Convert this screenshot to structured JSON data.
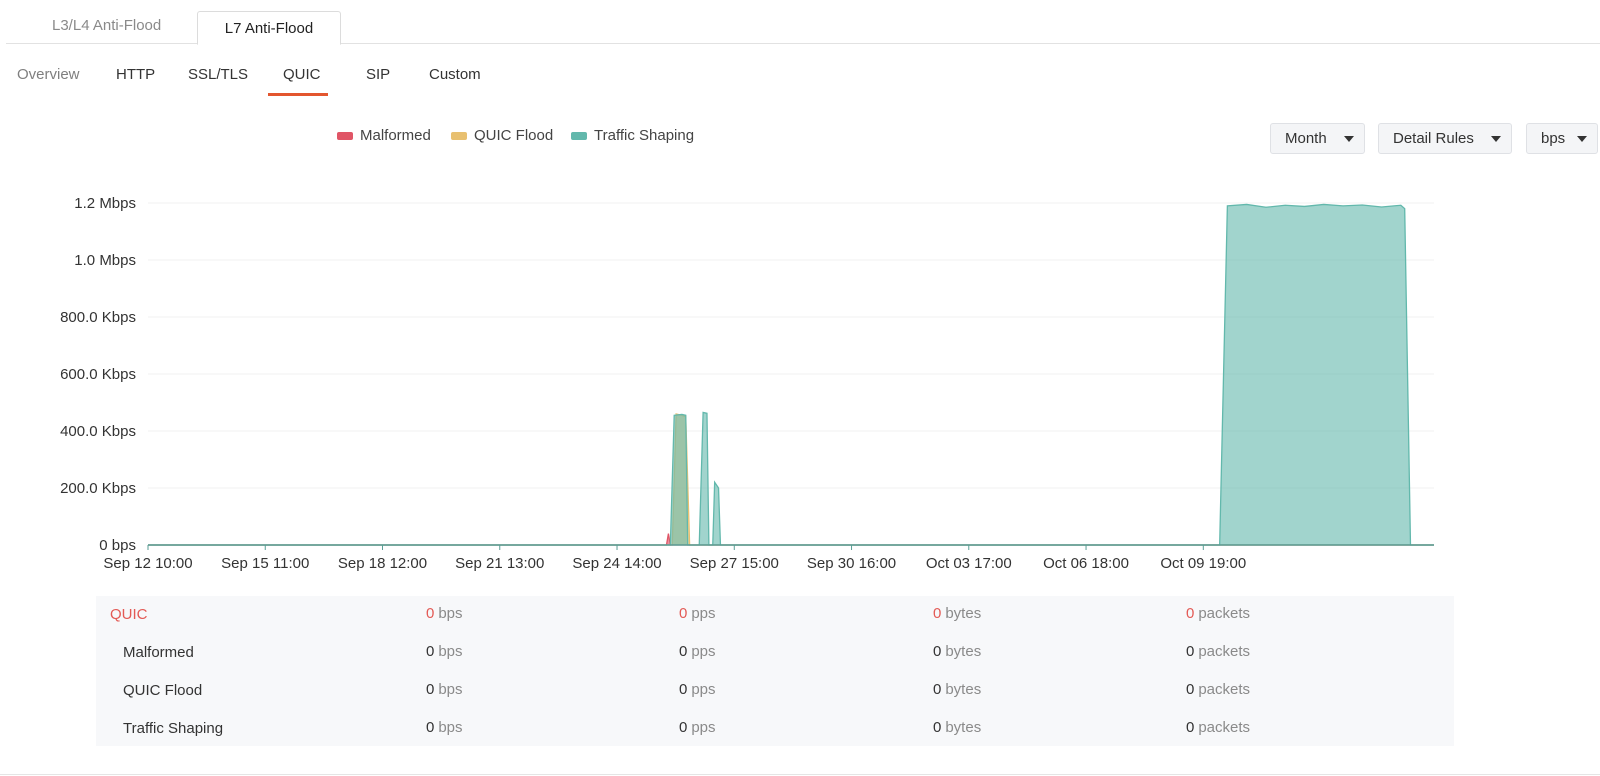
{
  "tabs": {
    "top": [
      {
        "label": "L3/L4 Anti-Flood",
        "active": false
      },
      {
        "label": "L7 Anti-Flood",
        "active": true
      }
    ],
    "sub": [
      {
        "label": "Overview",
        "active": false
      },
      {
        "label": "HTTP",
        "active": false
      },
      {
        "label": "SSL/TLS",
        "active": false
      },
      {
        "label": "QUIC",
        "active": true
      },
      {
        "label": "SIP",
        "active": false
      },
      {
        "label": "Custom",
        "active": false
      }
    ]
  },
  "legend": [
    {
      "label": "Malformed",
      "color": "#e05566"
    },
    {
      "label": "QUIC Flood",
      "color": "#e8c070"
    },
    {
      "label": "Traffic Shaping",
      "color": "#62b8ac"
    }
  ],
  "controls": {
    "period": "Month",
    "rule_mode": "Detail Rules",
    "unit": "bps"
  },
  "chart_data": {
    "type": "area",
    "x_tick_labels": [
      "Sep 12 10:00",
      "Sep 15 11:00",
      "Sep 18 12:00",
      "Sep 21 13:00",
      "Sep 24 14:00",
      "Sep 27 15:00",
      "Sep 30 16:00",
      "Oct 03 17:00",
      "Oct 06 18:00",
      "Oct 09 19:00"
    ],
    "y_tick_labels": [
      "0 bps",
      "200.0 Kbps",
      "400.0 Kbps",
      "600.0 Kbps",
      "800.0 Kbps",
      "1.0 Mbps",
      "1.2 Mbps"
    ],
    "y_unit": "Kbps",
    "ylim": [
      0,
      1200
    ],
    "x_unit": "days after Sep 12 10:00",
    "xlim": [
      0,
      33.36
    ],
    "series": [
      {
        "name": "Malformed",
        "color": "#e05566",
        "points": [
          [
            0,
            0
          ],
          [
            13.45,
            0
          ],
          [
            13.5,
            40
          ],
          [
            13.55,
            0
          ],
          [
            33.36,
            0
          ]
        ]
      },
      {
        "name": "QUIC Flood",
        "color": "#e8c070",
        "points": [
          [
            0,
            0
          ],
          [
            13.6,
            0
          ],
          [
            13.7,
            460
          ],
          [
            13.85,
            455
          ],
          [
            13.95,
            450
          ],
          [
            14.05,
            0
          ],
          [
            33.36,
            0
          ]
        ]
      },
      {
        "name": "Traffic Shaping",
        "color": "#62b8ac",
        "points": [
          [
            0,
            0
          ],
          [
            13.55,
            0
          ],
          [
            13.65,
            455
          ],
          [
            13.85,
            458
          ],
          [
            13.95,
            455
          ],
          [
            14.0,
            0
          ],
          [
            14.3,
            0
          ],
          [
            14.4,
            465
          ],
          [
            14.5,
            462
          ],
          [
            14.55,
            0
          ],
          [
            14.65,
            0
          ],
          [
            14.7,
            220
          ],
          [
            14.8,
            200
          ],
          [
            14.85,
            0
          ],
          [
            27.8,
            0
          ],
          [
            28.0,
            1190
          ],
          [
            28.5,
            1195
          ],
          [
            29.0,
            1185
          ],
          [
            29.5,
            1192
          ],
          [
            30.0,
            1188
          ],
          [
            30.5,
            1195
          ],
          [
            31.0,
            1190
          ],
          [
            31.5,
            1193
          ],
          [
            32.0,
            1186
          ],
          [
            32.5,
            1192
          ],
          [
            32.6,
            1180
          ],
          [
            32.75,
            0
          ],
          [
            33.36,
            0
          ]
        ]
      }
    ]
  },
  "summary": {
    "units": [
      "bps",
      "pps",
      "bytes",
      "packets"
    ],
    "rows": [
      {
        "label": "QUIC",
        "values": [
          "0",
          "0",
          "0",
          "0"
        ],
        "total": true
      },
      {
        "label": "Malformed",
        "values": [
          "0",
          "0",
          "0",
          "0"
        ],
        "total": false
      },
      {
        "label": "QUIC Flood",
        "values": [
          "0",
          "0",
          "0",
          "0"
        ],
        "total": false
      },
      {
        "label": "Traffic Shaping",
        "values": [
          "0",
          "0",
          "0",
          "0"
        ],
        "total": false
      }
    ]
  }
}
